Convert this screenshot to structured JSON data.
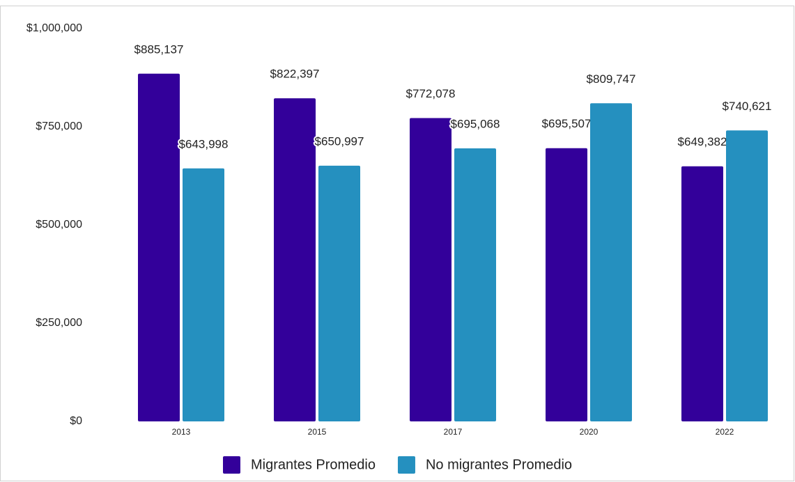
{
  "chart_data": {
    "type": "bar",
    "categories": [
      "2013",
      "2015",
      "2017",
      "2020",
      "2022"
    ],
    "series": [
      {
        "name": "Migrantes Promedio",
        "color": "#33009a",
        "values": [
          885137,
          822397,
          772078,
          695507,
          649382
        ],
        "value_labels": [
          "$885,137",
          "$822,397",
          "$772,078",
          "$695,507",
          "$649,382"
        ]
      },
      {
        "name": "No migrantes Promedio",
        "color": "#2590bf",
        "values": [
          643998,
          650997,
          695068,
          809747,
          740621
        ],
        "value_labels": [
          "$643,998",
          "$650,997",
          "$695,068",
          "$809,747",
          "$740,621"
        ]
      }
    ],
    "ylim": [
      0,
      1000000
    ],
    "yticks": [
      {
        "value": 0,
        "label": "$0"
      },
      {
        "value": 250000,
        "label": "$250,000"
      },
      {
        "value": 500000,
        "label": "$500,000"
      },
      {
        "value": 750000,
        "label": "$750,000"
      },
      {
        "value": 1000000,
        "label": "$1,000,000"
      }
    ],
    "grid": false,
    "legend": "bottom"
  }
}
